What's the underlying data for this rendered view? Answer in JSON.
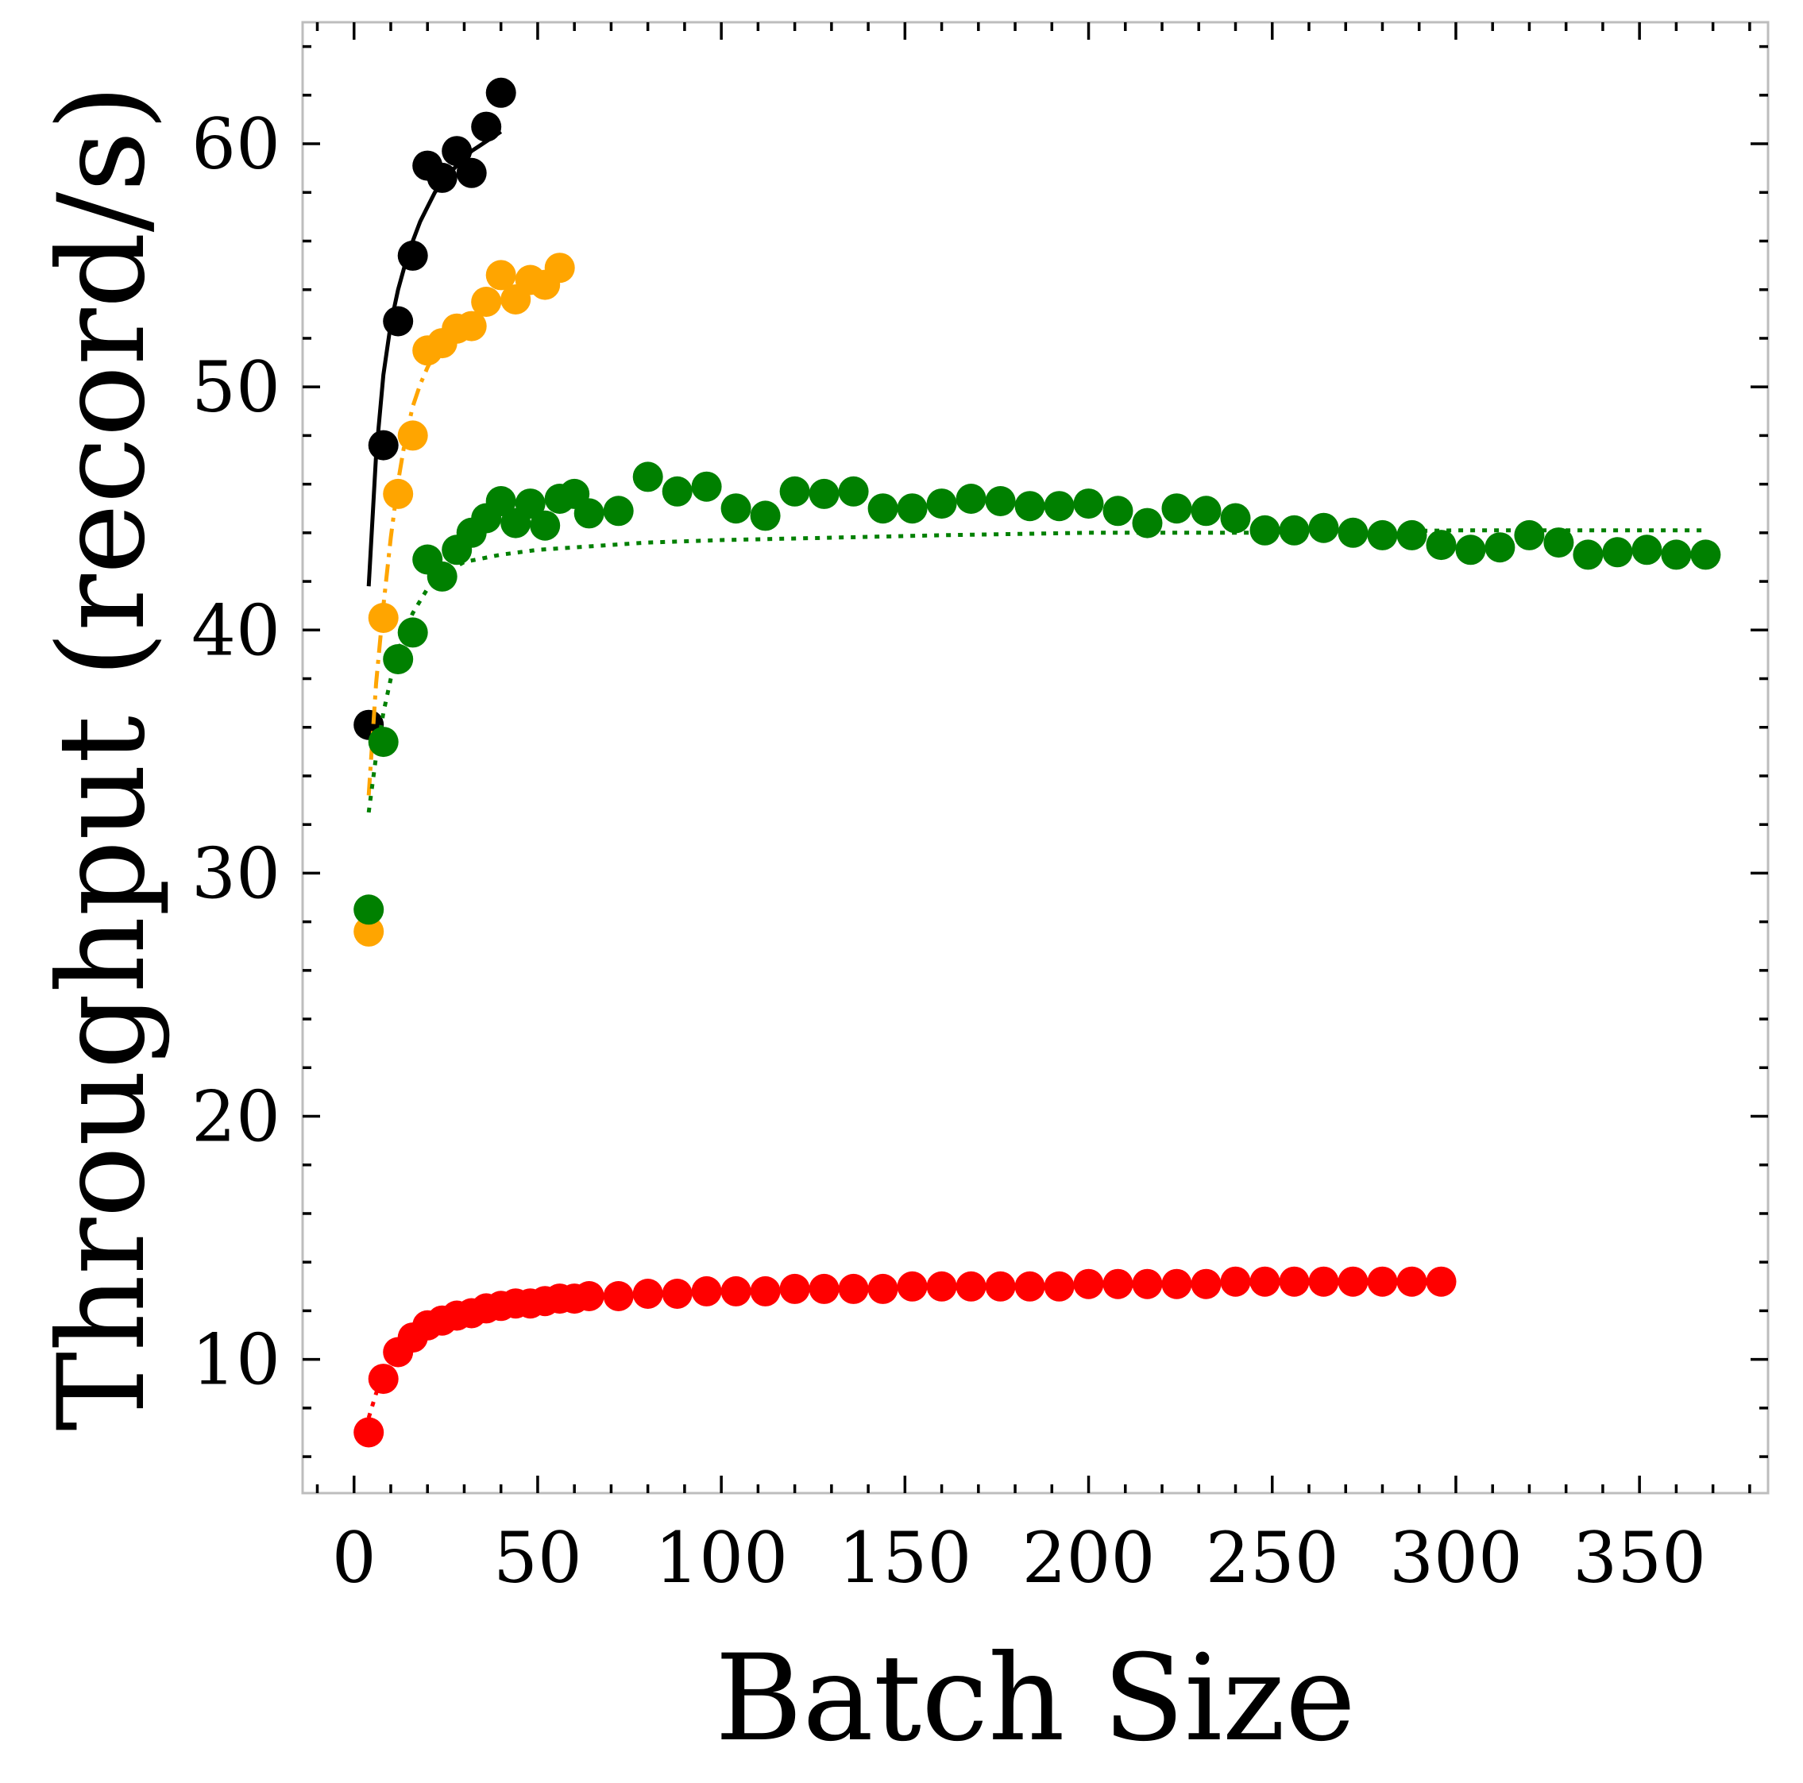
{
  "chart_data": {
    "type": "scatter",
    "title": "",
    "xlabel": "Batch Size",
    "ylabel": "Throughput (record/s)",
    "xlim": [
      -14,
      385
    ],
    "ylim": [
      4.5,
      65
    ],
    "xticks": [
      0,
      50,
      100,
      150,
      200,
      250,
      300,
      350
    ],
    "yticks": [
      10,
      20,
      30,
      40,
      50,
      60
    ],
    "grid": false,
    "legend": "none",
    "series": [
      {
        "color": "#000000",
        "line_style": "solid",
        "x": [
          4,
          8,
          12,
          16,
          20,
          24,
          28,
          32,
          36,
          40
        ],
        "y": [
          36.1,
          47.6,
          52.7,
          55.4,
          59.1,
          58.6,
          59.7,
          58.8,
          60.7,
          62.1
        ],
        "fit_x": [
          4,
          6,
          8,
          10,
          12,
          14,
          16,
          18,
          20,
          22,
          24,
          26,
          28,
          30,
          32,
          34,
          36,
          38,
          40
        ],
        "fit_y": [
          41.8,
          47.2,
          50.5,
          52.6,
          54.0,
          55.1,
          56.0,
          56.8,
          57.4,
          58.0,
          58.4,
          58.8,
          59.1,
          59.4,
          59.7,
          59.9,
          60.1,
          60.3,
          60.5
        ]
      },
      {
        "color": "#FFA500",
        "line_style": "dashdot",
        "x": [
          4,
          8,
          12,
          16,
          20,
          24,
          28,
          32,
          36,
          40,
          44,
          48,
          52,
          56
        ],
        "y": [
          27.6,
          40.5,
          45.6,
          48.0,
          51.5,
          51.8,
          52.4,
          52.5,
          53.5,
          54.6,
          53.6,
          54.4,
          54.2,
          54.9
        ],
        "fit_x": [
          4,
          6,
          8,
          10,
          12,
          14,
          16,
          18,
          20,
          22,
          24
        ],
        "fit_y": [
          33.2,
          37.8,
          41.0,
          43.8,
          46.1,
          47.9,
          49.2,
          50.1,
          50.8,
          51.4,
          51.9
        ]
      },
      {
        "color": "#008000",
        "line_style": "dotted",
        "x": [
          4,
          8,
          12,
          16,
          20,
          24,
          28,
          32,
          36,
          40,
          44,
          48,
          52,
          56,
          60,
          64,
          72,
          80,
          88,
          96,
          104,
          112,
          120,
          128,
          136,
          144,
          152,
          160,
          168,
          176,
          184,
          192,
          200,
          208,
          216,
          224,
          232,
          240,
          248,
          256,
          264,
          272,
          280,
          288,
          296,
          304,
          312,
          320,
          328,
          336,
          344,
          352,
          360,
          368
        ],
        "y": [
          28.5,
          35.4,
          38.8,
          39.9,
          42.9,
          42.2,
          43.3,
          44.0,
          44.6,
          45.3,
          44.4,
          45.2,
          44.3,
          45.4,
          45.6,
          44.8,
          44.9,
          46.3,
          45.7,
          45.9,
          45.0,
          44.7,
          45.7,
          45.6,
          45.7,
          45.0,
          45.0,
          45.2,
          45.4,
          45.3,
          45.1,
          45.1,
          45.2,
          44.9,
          44.4,
          45.0,
          44.9,
          44.6,
          44.1,
          44.1,
          44.2,
          44.0,
          43.9,
          43.9,
          43.5,
          43.3,
          43.4,
          43.9,
          43.6,
          43.1,
          43.2,
          43.3,
          43.1,
          43.1
        ],
        "fit_x": [
          4,
          6,
          8,
          10,
          12,
          14,
          16,
          20,
          24,
          30,
          40,
          50,
          60,
          80,
          100,
          130,
          160,
          200,
          250,
          300,
          368
        ],
        "fit_y": [
          32.5,
          34.8,
          36.6,
          38.0,
          39.1,
          40.0,
          40.7,
          41.7,
          42.3,
          42.8,
          43.1,
          43.3,
          43.4,
          43.6,
          43.7,
          43.8,
          43.9,
          44.0,
          44.0,
          44.1,
          44.1
        ]
      },
      {
        "color": "#FF0000",
        "line_style": "dotted",
        "x": [
          4,
          8,
          12,
          16,
          20,
          24,
          28,
          32,
          36,
          40,
          44,
          48,
          52,
          56,
          60,
          64,
          72,
          80,
          88,
          96,
          104,
          112,
          120,
          128,
          136,
          144,
          152,
          160,
          168,
          176,
          184,
          192,
          200,
          208,
          216,
          224,
          232,
          240,
          248,
          256,
          264,
          272,
          280,
          288,
          296
        ],
        "y": [
          7.0,
          9.2,
          10.3,
          10.9,
          11.4,
          11.6,
          11.8,
          11.9,
          12.1,
          12.2,
          12.3,
          12.3,
          12.4,
          12.5,
          12.5,
          12.6,
          12.6,
          12.7,
          12.7,
          12.8,
          12.8,
          12.8,
          12.9,
          12.9,
          12.9,
          12.9,
          13.0,
          13.0,
          13.0,
          13.0,
          13.0,
          13.0,
          13.1,
          13.1,
          13.1,
          13.1,
          13.1,
          13.2,
          13.2,
          13.2,
          13.2,
          13.2,
          13.2,
          13.2,
          13.2
        ],
        "fit_x": [
          4,
          6,
          8,
          10,
          12,
          14,
          16,
          20,
          24,
          28,
          32,
          40,
          50,
          60,
          80,
          100,
          150,
          200,
          250,
          296
        ],
        "fit_y": [
          7.6,
          8.6,
          9.4,
          10.0,
          10.5,
          10.8,
          11.1,
          11.5,
          11.8,
          12.0,
          12.1,
          12.3,
          12.4,
          12.5,
          12.7,
          12.8,
          12.9,
          13.0,
          13.1,
          13.2
        ]
      }
    ]
  }
}
